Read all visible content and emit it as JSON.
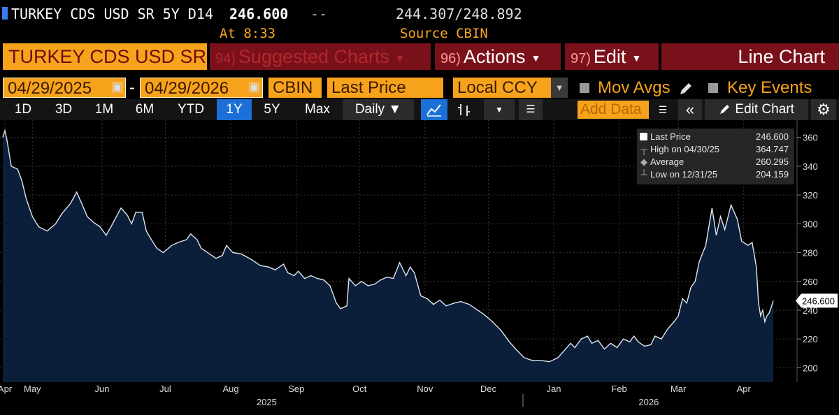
{
  "header": {
    "ticker": "TURKEY CDS USD SR 5Y D14",
    "last": "246.600",
    "change": "--",
    "bid_ask": "244.307/248.892",
    "time": "At 8:33",
    "source": "Source CBIN"
  },
  "menu": {
    "title": "TURKEY CDS USD SR",
    "suggested_num": "94)",
    "suggested": "Suggested Charts",
    "actions_num": "96)",
    "actions": "Actions",
    "edit_num": "97)",
    "edit": "Edit",
    "chart_type": "Line Chart"
  },
  "controls": {
    "start_date": "04/29/2025",
    "date_sep": "-",
    "end_date": "04/29/2026",
    "source": "CBIN",
    "field": "Last Price",
    "currency": "Local CCY",
    "mov_avgs": "Mov Avgs",
    "key_events": "Key Events",
    "periods": [
      "1D",
      "3D",
      "1M",
      "6M",
      "YTD",
      "1Y",
      "5Y",
      "Max"
    ],
    "selected_period": "1Y",
    "frequency": "Daily",
    "add_data": "Add Data",
    "edit_chart": "Edit Chart"
  },
  "colors": {
    "accent": "#f7a21b",
    "menu_red": "#7a111a",
    "selected_blue": "#1b6fd6",
    "line": "#dfe6ef",
    "area": "#0b1e3a"
  },
  "icons": {
    "calendar": "calendar-icon",
    "pencil": "pencil-icon",
    "gear": "gear-icon",
    "rewind": "double-chevron-left-icon",
    "line_chart": "line-chart-icon",
    "bar_chart": "ohlc-bar-icon"
  },
  "chart_data": {
    "type": "area",
    "title": "",
    "xlabel": "",
    "ylabel": "",
    "ylim": [
      190,
      372
    ],
    "yticks": [
      200,
      220,
      240,
      260,
      280,
      300,
      320,
      340,
      360
    ],
    "grid": true,
    "legend_position": "top-right",
    "x_range": [
      "2025-04-29",
      "2026-04-29"
    ],
    "month_ticks": [
      {
        "label": "Apr",
        "date": "2025-04-30"
      },
      {
        "label": "May",
        "date": "2025-05-13"
      },
      {
        "label": "Jun",
        "date": "2025-06-15"
      },
      {
        "label": "Jul",
        "date": "2025-07-15"
      },
      {
        "label": "Aug",
        "date": "2025-08-15"
      },
      {
        "label": "Sep",
        "date": "2025-09-15"
      },
      {
        "label": "Oct",
        "date": "2025-10-15"
      },
      {
        "label": "Nov",
        "date": "2025-11-15"
      },
      {
        "label": "Dec",
        "date": "2025-12-15"
      },
      {
        "label": "Jan",
        "date": "2026-01-15"
      },
      {
        "label": "Feb",
        "date": "2026-02-15"
      },
      {
        "label": "Mar",
        "date": "2026-03-15"
      },
      {
        "label": "Apr",
        "date": "2026-04-15"
      }
    ],
    "year_labels": [
      {
        "label": "2025",
        "date": "2025-09-01"
      },
      {
        "label": "2026",
        "date": "2026-03-01"
      }
    ],
    "series": [
      {
        "name": "Last Price",
        "points": [
          [
            "2025-04-29",
            360
          ],
          [
            "2025-04-30",
            364.7
          ],
          [
            "2025-05-01",
            358
          ],
          [
            "2025-05-03",
            340
          ],
          [
            "2025-05-06",
            338
          ],
          [
            "2025-05-08",
            330
          ],
          [
            "2025-05-10",
            318
          ],
          [
            "2025-05-13",
            305
          ],
          [
            "2025-05-16",
            298
          ],
          [
            "2025-05-20",
            295
          ],
          [
            "2025-05-24",
            300
          ],
          [
            "2025-05-27",
            307
          ],
          [
            "2025-05-31",
            314
          ],
          [
            "2025-06-03",
            322
          ],
          [
            "2025-06-06",
            312
          ],
          [
            "2025-06-08",
            305
          ],
          [
            "2025-06-11",
            301
          ],
          [
            "2025-06-14",
            298
          ],
          [
            "2025-06-17",
            292
          ],
          [
            "2025-06-20",
            300
          ],
          [
            "2025-06-24",
            311
          ],
          [
            "2025-06-27",
            306
          ],
          [
            "2025-06-29",
            300
          ],
          [
            "2025-07-01",
            308
          ],
          [
            "2025-07-04",
            308
          ],
          [
            "2025-07-06",
            295
          ],
          [
            "2025-07-08",
            290
          ],
          [
            "2025-07-11",
            283
          ],
          [
            "2025-07-14",
            280
          ],
          [
            "2025-07-18",
            285
          ],
          [
            "2025-07-21",
            287
          ],
          [
            "2025-07-25",
            289
          ],
          [
            "2025-07-27",
            293
          ],
          [
            "2025-07-30",
            289
          ],
          [
            "2025-08-01",
            283
          ],
          [
            "2025-08-04",
            280
          ],
          [
            "2025-08-08",
            276
          ],
          [
            "2025-08-11",
            278
          ],
          [
            "2025-08-13",
            285
          ],
          [
            "2025-08-16",
            280
          ],
          [
            "2025-08-20",
            279
          ],
          [
            "2025-08-25",
            275
          ],
          [
            "2025-08-29",
            271
          ],
          [
            "2025-09-02",
            270
          ],
          [
            "2025-09-05",
            268
          ],
          [
            "2025-09-09",
            272
          ],
          [
            "2025-09-11",
            266
          ],
          [
            "2025-09-14",
            264
          ],
          [
            "2025-09-16",
            267
          ],
          [
            "2025-09-19",
            262
          ],
          [
            "2025-09-22",
            264
          ],
          [
            "2025-09-25",
            262
          ],
          [
            "2025-09-28",
            261
          ],
          [
            "2025-10-01",
            257
          ],
          [
            "2025-10-04",
            245
          ],
          [
            "2025-10-06",
            241
          ],
          [
            "2025-10-09",
            243
          ],
          [
            "2025-10-10",
            262
          ],
          [
            "2025-10-13",
            257
          ],
          [
            "2025-10-16",
            260
          ],
          [
            "2025-10-19",
            257
          ],
          [
            "2025-10-22",
            258
          ],
          [
            "2025-10-25",
            261
          ],
          [
            "2025-10-28",
            263
          ],
          [
            "2025-10-31",
            262
          ],
          [
            "2025-11-03",
            273
          ],
          [
            "2025-11-06",
            264
          ],
          [
            "2025-11-08",
            270
          ],
          [
            "2025-11-10",
            266
          ],
          [
            "2025-11-13",
            250
          ],
          [
            "2025-11-16",
            248
          ],
          [
            "2025-11-19",
            244
          ],
          [
            "2025-11-22",
            247
          ],
          [
            "2025-11-25",
            243
          ],
          [
            "2025-11-29",
            245
          ],
          [
            "2025-12-02",
            246
          ],
          [
            "2025-12-06",
            244
          ],
          [
            "2025-12-09",
            241
          ],
          [
            "2025-12-13",
            237
          ],
          [
            "2025-12-17",
            232
          ],
          [
            "2025-12-21",
            226
          ],
          [
            "2025-12-25",
            218
          ],
          [
            "2025-12-28",
            213
          ],
          [
            "2026-01-01",
            207
          ],
          [
            "2026-01-05",
            205
          ],
          [
            "2026-01-09",
            205
          ],
          [
            "2026-01-13",
            204.2
          ],
          [
            "2026-01-17",
            207
          ],
          [
            "2026-01-20",
            212
          ],
          [
            "2026-01-23",
            217
          ],
          [
            "2026-01-25",
            214
          ],
          [
            "2026-01-28",
            220
          ],
          [
            "2026-01-31",
            222
          ],
          [
            "2026-02-02",
            217
          ],
          [
            "2026-02-05",
            219
          ],
          [
            "2026-02-08",
            213
          ],
          [
            "2026-02-11",
            217
          ],
          [
            "2026-02-14",
            214
          ],
          [
            "2026-02-17",
            220
          ],
          [
            "2026-02-20",
            218
          ],
          [
            "2026-02-22",
            222
          ],
          [
            "2026-02-24",
            218
          ],
          [
            "2026-02-27",
            215
          ],
          [
            "2026-03-02",
            216
          ],
          [
            "2026-03-04",
            222
          ],
          [
            "2026-03-07",
            220
          ],
          [
            "2026-03-10",
            227
          ],
          [
            "2026-03-13",
            232
          ],
          [
            "2026-03-15",
            236
          ],
          [
            "2026-03-17",
            248
          ],
          [
            "2026-03-19",
            245
          ],
          [
            "2026-03-21",
            256
          ],
          [
            "2026-03-23",
            260
          ],
          [
            "2026-03-25",
            274
          ],
          [
            "2026-03-28",
            285
          ],
          [
            "2026-03-31",
            311
          ],
          [
            "2026-04-02",
            292
          ],
          [
            "2026-04-04",
            305
          ],
          [
            "2026-04-06",
            296
          ],
          [
            "2026-04-09",
            313
          ],
          [
            "2026-04-12",
            303
          ],
          [
            "2026-04-14",
            288
          ],
          [
            "2026-04-17",
            285
          ],
          [
            "2026-04-19",
            287
          ],
          [
            "2026-04-21",
            270
          ],
          [
            "2026-04-22",
            245
          ],
          [
            "2026-04-23",
            236
          ],
          [
            "2026-04-24",
            240
          ],
          [
            "2026-04-25",
            232
          ],
          [
            "2026-04-26",
            236
          ],
          [
            "2026-04-27",
            238
          ],
          [
            "2026-04-28",
            242
          ],
          [
            "2026-04-29",
            246.6
          ]
        ]
      }
    ],
    "legend": [
      {
        "label": "Last Price",
        "value": "246.600"
      },
      {
        "label": "High on 04/30/25",
        "value": "364.747"
      },
      {
        "label": "Average",
        "value": "260.295"
      },
      {
        "label": "Low on 12/31/25",
        "value": "204.159"
      }
    ],
    "last_value_label": "246.600"
  }
}
